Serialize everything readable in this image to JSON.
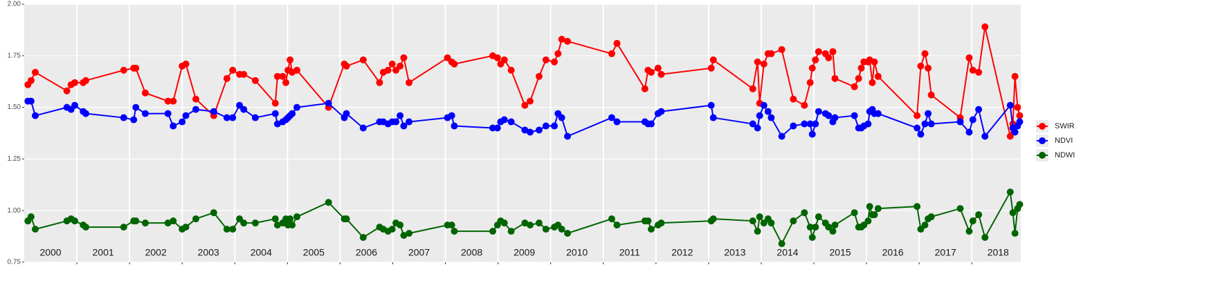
{
  "chart_data": {
    "type": "line",
    "x": [
      2000.07,
      2000.13,
      2000.21,
      2000.81,
      2000.89,
      2000.96,
      2001.12,
      2001.17,
      2001.89,
      2002.08,
      2002.12,
      2002.3,
      2002.73,
      2002.83,
      2003.0,
      2003.07,
      2003.26,
      2003.6,
      2003.85,
      2003.96,
      2004.09,
      2004.17,
      2004.39,
      2004.77,
      2004.81,
      2004.91,
      2004.97,
      2005.01,
      2005.05,
      2005.09,
      2005.18,
      2005.78,
      2006.08,
      2006.12,
      2006.44,
      2006.75,
      2006.82,
      2006.91,
      2006.99,
      2007.06,
      2007.14,
      2007.21,
      2007.31,
      2008.04,
      2008.12,
      2008.17,
      2008.9,
      2008.99,
      2009.05,
      2009.12,
      2009.25,
      2009.51,
      2009.61,
      2009.78,
      2009.91,
      2010.07,
      2010.14,
      2010.21,
      2010.32,
      2011.16,
      2011.26,
      2011.79,
      2011.85,
      2011.91,
      2012.04,
      2012.1,
      2013.05,
      2013.09,
      2013.84,
      2013.93,
      2013.97,
      2014.05,
      2014.13,
      2014.19,
      2014.39,
      2014.61,
      2014.82,
      2014.93,
      2014.97,
      2015.03,
      2015.09,
      2015.22,
      2015.28,
      2015.36,
      2015.4,
      2015.77,
      2015.85,
      2015.9,
      2015.95,
      2016.03,
      2016.06,
      2016.11,
      2016.15,
      2016.22,
      2016.96,
      2017.03,
      2017.11,
      2017.17,
      2017.23,
      2017.78,
      2017.95,
      2018.02,
      2018.13,
      2018.25,
      2018.73,
      2018.78,
      2018.82,
      2018.87,
      2018.91
    ],
    "series": [
      {
        "name": "SWIR",
        "color": "#ff0000",
        "values": [
          1.61,
          1.63,
          1.67,
          1.58,
          1.61,
          1.62,
          1.62,
          1.63,
          1.68,
          1.69,
          1.69,
          1.57,
          1.53,
          1.53,
          1.7,
          1.71,
          1.54,
          1.46,
          1.64,
          1.68,
          1.66,
          1.66,
          1.63,
          1.52,
          1.65,
          1.65,
          1.62,
          1.68,
          1.73,
          1.67,
          1.68,
          1.5,
          1.71,
          1.7,
          1.73,
          1.62,
          1.67,
          1.68,
          1.71,
          1.68,
          1.7,
          1.74,
          1.62,
          1.74,
          1.72,
          1.71,
          1.75,
          1.74,
          1.71,
          1.73,
          1.68,
          1.51,
          1.53,
          1.65,
          1.73,
          1.72,
          1.76,
          1.83,
          1.82,
          1.76,
          1.81,
          1.59,
          1.68,
          1.67,
          1.69,
          1.66,
          1.69,
          1.73,
          1.59,
          1.72,
          1.52,
          1.71,
          1.76,
          1.76,
          1.78,
          1.54,
          1.51,
          1.62,
          1.69,
          1.73,
          1.77,
          1.76,
          1.74,
          1.77,
          1.64,
          1.6,
          1.64,
          1.69,
          1.72,
          1.72,
          1.73,
          1.62,
          1.72,
          1.65,
          1.46,
          1.7,
          1.76,
          1.69,
          1.56,
          1.45,
          1.74,
          1.68,
          1.67,
          1.89,
          1.36,
          1.42,
          1.65,
          1.5,
          1.46
        ]
      },
      {
        "name": "NDVI",
        "color": "#0000ff",
        "values": [
          1.53,
          1.53,
          1.46,
          1.5,
          1.49,
          1.51,
          1.48,
          1.47,
          1.45,
          1.44,
          1.5,
          1.47,
          1.47,
          1.41,
          1.43,
          1.46,
          1.49,
          1.48,
          1.45,
          1.45,
          1.51,
          1.49,
          1.45,
          1.47,
          1.42,
          1.43,
          1.44,
          1.45,
          1.46,
          1.47,
          1.5,
          1.52,
          1.45,
          1.47,
          1.4,
          1.43,
          1.43,
          1.42,
          1.43,
          1.43,
          1.46,
          1.41,
          1.43,
          1.45,
          1.46,
          1.41,
          1.4,
          1.4,
          1.43,
          1.44,
          1.43,
          1.39,
          1.38,
          1.39,
          1.41,
          1.41,
          1.47,
          1.45,
          1.36,
          1.45,
          1.43,
          1.43,
          1.42,
          1.42,
          1.47,
          1.48,
          1.51,
          1.45,
          1.42,
          1.4,
          1.46,
          1.51,
          1.48,
          1.45,
          1.36,
          1.41,
          1.42,
          1.42,
          1.37,
          1.42,
          1.48,
          1.47,
          1.46,
          1.43,
          1.45,
          1.46,
          1.4,
          1.4,
          1.41,
          1.42,
          1.48,
          1.49,
          1.47,
          1.47,
          1.4,
          1.37,
          1.42,
          1.47,
          1.42,
          1.43,
          1.38,
          1.44,
          1.49,
          1.36,
          1.51,
          1.4,
          1.38,
          1.41,
          1.43
        ]
      },
      {
        "name": "NDWI",
        "color": "#006400",
        "values": [
          0.95,
          0.97,
          0.91,
          0.95,
          0.96,
          0.95,
          0.93,
          0.92,
          0.92,
          0.95,
          0.95,
          0.94,
          0.94,
          0.95,
          0.91,
          0.92,
          0.96,
          0.99,
          0.91,
          0.91,
          0.96,
          0.94,
          0.94,
          0.96,
          0.93,
          0.94,
          0.96,
          0.93,
          0.96,
          0.93,
          0.97,
          1.04,
          0.96,
          0.96,
          0.87,
          0.92,
          0.91,
          0.9,
          0.91,
          0.94,
          0.93,
          0.88,
          0.89,
          0.93,
          0.93,
          0.9,
          0.9,
          0.93,
          0.95,
          0.94,
          0.9,
          0.94,
          0.93,
          0.94,
          0.91,
          0.92,
          0.93,
          0.91,
          0.89,
          0.96,
          0.93,
          0.95,
          0.95,
          0.91,
          0.93,
          0.94,
          0.95,
          0.96,
          0.95,
          0.9,
          0.97,
          0.94,
          0.96,
          0.94,
          0.84,
          0.95,
          0.99,
          0.92,
          0.87,
          0.92,
          0.97,
          0.94,
          0.92,
          0.9,
          0.93,
          0.99,
          0.92,
          0.92,
          0.93,
          0.95,
          1.02,
          0.98,
          0.98,
          1.01,
          1.02,
          0.91,
          0.93,
          0.96,
          0.97,
          1.01,
          0.9,
          0.95,
          0.98,
          0.87,
          1.09,
          0.99,
          0.89,
          1.01,
          1.03
        ]
      }
    ],
    "xlim": [
      2000,
      2018.93
    ],
    "xticks": [
      2001,
      2002,
      2003,
      2004,
      2005,
      2006,
      2007,
      2008,
      2009,
      2010,
      2011,
      2012,
      2013,
      2014,
      2015,
      2016,
      2017,
      2018
    ],
    "xtick_labels": false,
    "year_labels": [
      {
        "x": 2000.5,
        "label": "2000"
      },
      {
        "x": 2001.5,
        "label": "2001"
      },
      {
        "x": 2002.5,
        "label": "2002"
      },
      {
        "x": 2003.5,
        "label": "2003"
      },
      {
        "x": 2004.5,
        "label": "2004"
      },
      {
        "x": 2005.5,
        "label": "2005"
      },
      {
        "x": 2006.5,
        "label": "2006"
      },
      {
        "x": 2007.5,
        "label": "2007"
      },
      {
        "x": 2008.5,
        "label": "2008"
      },
      {
        "x": 2009.5,
        "label": "2009"
      },
      {
        "x": 2010.5,
        "label": "2010"
      },
      {
        "x": 2011.5,
        "label": "2011"
      },
      {
        "x": 2012.5,
        "label": "2012"
      },
      {
        "x": 2013.5,
        "label": "2013"
      },
      {
        "x": 2014.5,
        "label": "2014"
      },
      {
        "x": 2015.5,
        "label": "2015"
      },
      {
        "x": 2016.5,
        "label": "2016"
      },
      {
        "x": 2017.5,
        "label": "2017"
      },
      {
        "x": 2018.5,
        "label": "2018"
      }
    ],
    "ylim": [
      0.75,
      2.0
    ],
    "yticks": [
      {
        "value": 0.75,
        "label": "0.75"
      },
      {
        "value": 1.0,
        "label": "1.00"
      },
      {
        "value": 1.25,
        "label": "1.25"
      },
      {
        "value": 1.5,
        "label": "1.50"
      },
      {
        "value": 1.75,
        "label": "1.75"
      },
      {
        "value": 2.0,
        "label": "2.00"
      }
    ],
    "grid": true,
    "legend": "right"
  }
}
